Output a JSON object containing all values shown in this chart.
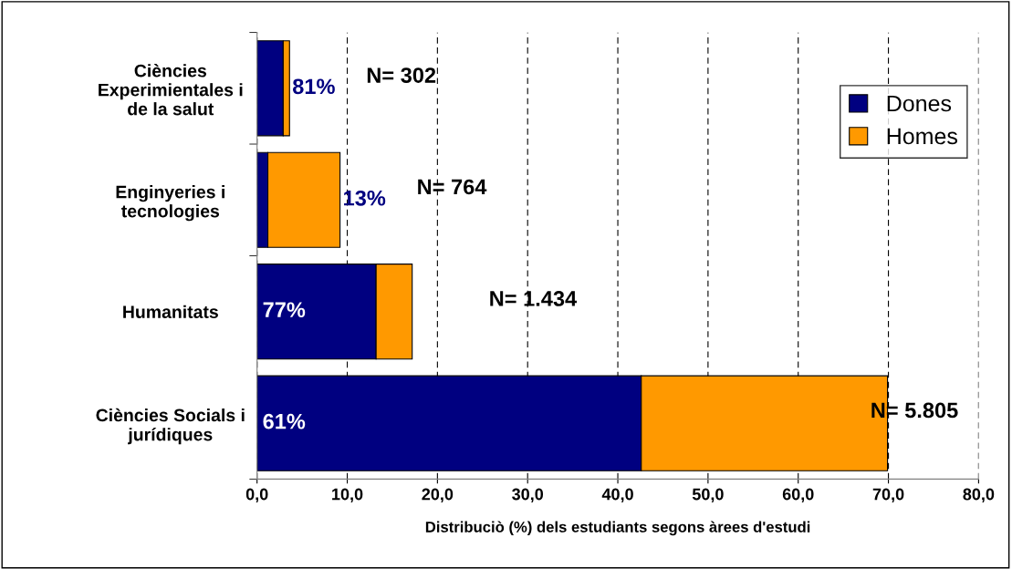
{
  "chart_data": {
    "type": "bar",
    "orientation": "horizontal",
    "stacked": true,
    "categories": [
      "Ciències Experimientales i de la salut",
      "Enginyeries i tecnologies",
      "Humanitats",
      "Ciències Socials i jurídiques"
    ],
    "series": [
      {
        "name": "Dones",
        "color": "#000080",
        "values": [
          2.9,
          1.2,
          13.2,
          42.6
        ]
      },
      {
        "name": "Homes",
        "color": "#ff9900",
        "values": [
          0.7,
          8.0,
          4.0,
          27.3
        ]
      }
    ],
    "xlabel": "Distribuciò (%) dels estudiants segons àrees d'estudi",
    "xlim": [
      0,
      80
    ],
    "xticks": [
      {
        "value": 0,
        "label": "0,0"
      },
      {
        "value": 10,
        "label": "10,0"
      },
      {
        "value": 20,
        "label": "20,0"
      },
      {
        "value": 30,
        "label": "30,0"
      },
      {
        "value": 40,
        "label": "40,0"
      },
      {
        "value": 50,
        "label": "50,0"
      },
      {
        "value": 60,
        "label": "60,0"
      },
      {
        "value": 70,
        "label": "70,0"
      },
      {
        "value": 80,
        "label": "80,0"
      }
    ],
    "grid": "x",
    "legend": "right",
    "annotations": [
      "81%",
      "13%",
      "77%",
      "61%",
      "N= 302",
      "N= 764",
      "N= 1.434",
      "N= 5.805"
    ]
  }
}
